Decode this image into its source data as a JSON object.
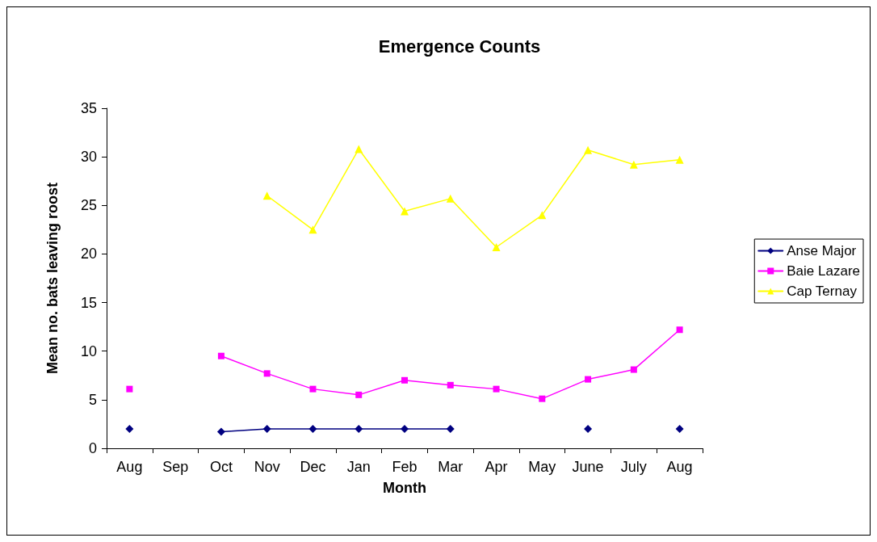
{
  "chart_data": {
    "type": "line",
    "title": "Emergence Counts",
    "xlabel": "Month",
    "ylabel": "Mean no. bats leaving roost",
    "categories": [
      "Aug",
      "Sep",
      "Oct",
      "Nov",
      "Dec",
      "Jan",
      "Feb",
      "Mar",
      "Apr",
      "May",
      "June",
      "July",
      "Aug"
    ],
    "series": [
      {
        "name": "Anse Major",
        "color": "#000080",
        "marker": "diamond",
        "values": [
          2.0,
          null,
          1.7,
          2.0,
          2.0,
          2.0,
          2.0,
          2.0,
          null,
          null,
          2.0,
          null,
          2.0
        ]
      },
      {
        "name": "Baie Lazare",
        "color": "#ff00ff",
        "marker": "square",
        "values": [
          6.1,
          null,
          9.5,
          7.7,
          6.1,
          5.5,
          7.0,
          6.5,
          6.1,
          5.1,
          7.1,
          8.1,
          12.2
        ]
      },
      {
        "name": "Cap Ternay",
        "color": "#ffff00",
        "marker": "triangle",
        "values": [
          null,
          null,
          null,
          26.0,
          22.5,
          30.8,
          24.4,
          25.7,
          20.7,
          24.0,
          30.7,
          29.2,
          29.7
        ]
      }
    ],
    "ylim": [
      0,
      35
    ],
    "yticks": [
      0,
      5,
      10,
      15,
      20,
      25,
      30,
      35
    ],
    "grid": false,
    "legend": "right",
    "line_style": "solid"
  }
}
